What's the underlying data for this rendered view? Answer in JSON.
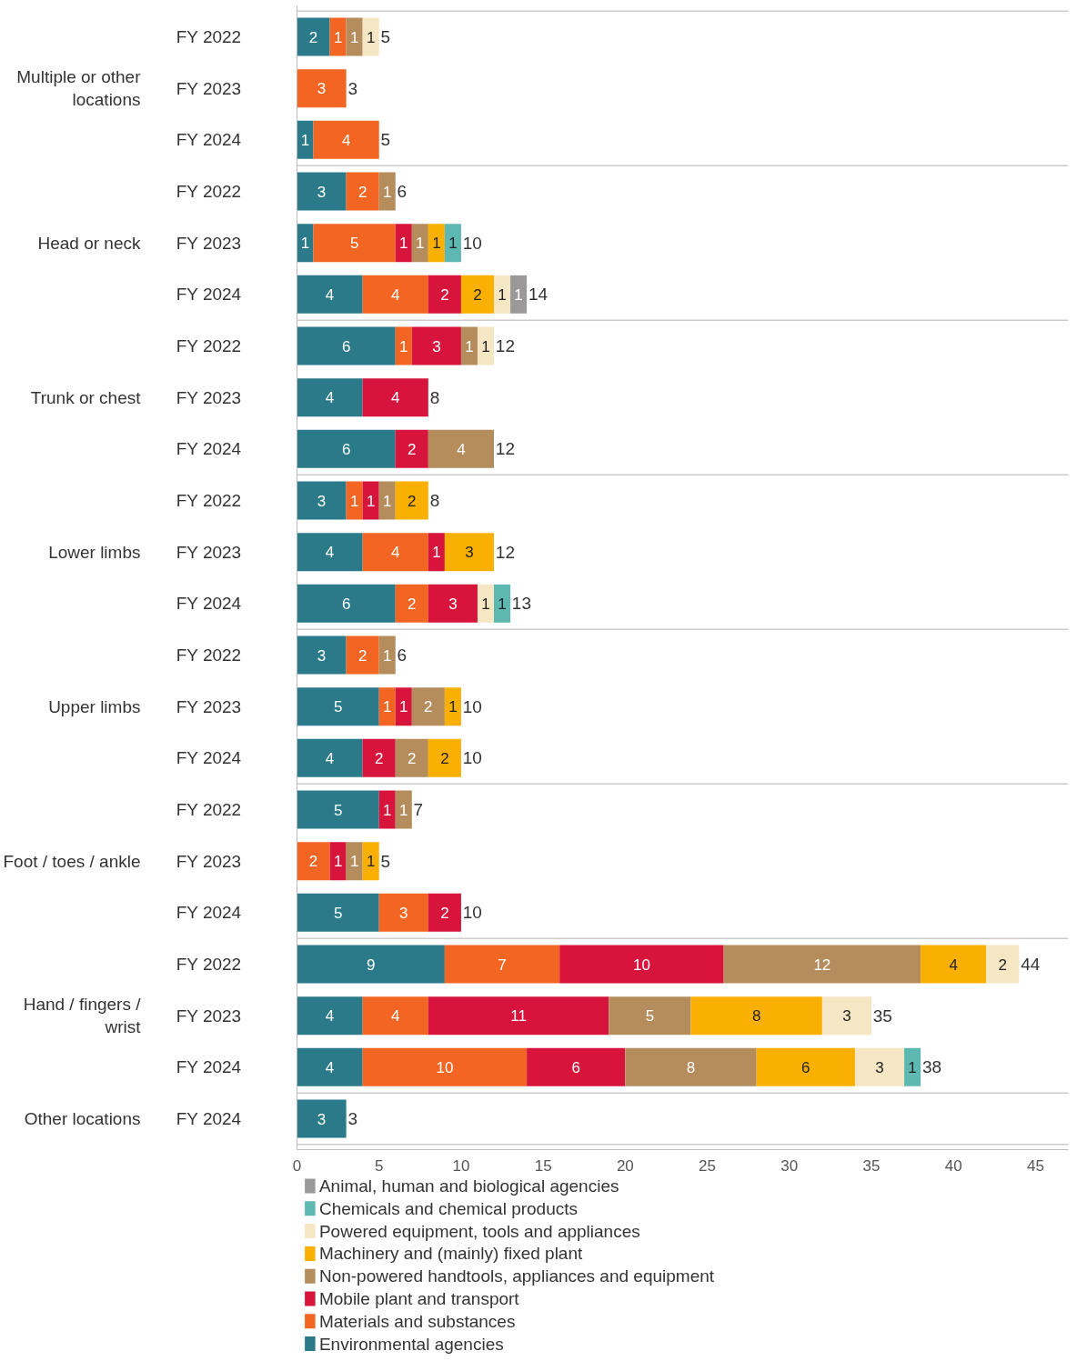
{
  "chart_data": {
    "type": "bar",
    "orientation": "horizontal",
    "stacked": true,
    "data_labels": true,
    "legend": "bottom",
    "categories": [
      "FY 2022",
      "FY 2023",
      "FY 2024",
      "FY 2022",
      "FY 2023",
      "FY 2024",
      "FY 2022",
      "FY 2023",
      "FY 2024",
      "FY 2022",
      "FY 2023",
      "FY 2024",
      "FY 2022",
      "FY 2023",
      "FY 2024",
      "FY 2022",
      "FY 2023",
      "FY 2024",
      "FY 2022",
      "FY 2023",
      "FY 2024",
      "FY 2024"
    ],
    "annotations": [
      "Multiple or other locations",
      "Head or neck",
      "Trunk or chest",
      "Lower limbs",
      "Upper limbs",
      "Foot / toes / ankle",
      "Hand / fingers / wrist",
      "Other locations"
    ],
    "xlim": [
      0,
      47
    ],
    "xticks": [
      0,
      5,
      10,
      15,
      20,
      25,
      30,
      35,
      40,
      45
    ],
    "series": [
      {
        "name": "Environmental agencies",
        "color": "#2b7a8a",
        "values": [
          2,
          null,
          1,
          3,
          1,
          4,
          6,
          4,
          6,
          3,
          4,
          6,
          3,
          5,
          4,
          5,
          null,
          5,
          9,
          4,
          4,
          3
        ]
      },
      {
        "name": "Materials and substances",
        "color": "#f26522",
        "values": [
          1,
          3,
          4,
          2,
          5,
          4,
          1,
          null,
          null,
          1,
          4,
          2,
          2,
          1,
          null,
          null,
          2,
          3,
          7,
          4,
          10,
          null
        ]
      },
      {
        "name": "Mobile plant and transport",
        "color": "#d7143c",
        "values": [
          null,
          null,
          null,
          null,
          1,
          2,
          3,
          4,
          2,
          1,
          1,
          3,
          null,
          1,
          2,
          1,
          1,
          2,
          10,
          11,
          6,
          null
        ]
      },
      {
        "name": "Non-powered handtools, appliances and equipment",
        "color": "#b58c5c",
        "values": [
          1,
          null,
          null,
          1,
          1,
          null,
          1,
          null,
          4,
          1,
          null,
          null,
          1,
          2,
          2,
          1,
          1,
          null,
          12,
          5,
          8,
          null
        ]
      },
      {
        "name": "Machinery and (mainly) fixed plant",
        "color": "#f9b000",
        "values": [
          null,
          null,
          null,
          null,
          1,
          2,
          null,
          null,
          null,
          2,
          3,
          null,
          null,
          1,
          2,
          null,
          1,
          null,
          4,
          8,
          6,
          null
        ]
      },
      {
        "name": "Powered equipment, tools and appliances",
        "color": "#f5e6c4",
        "values": [
          1,
          null,
          null,
          null,
          null,
          1,
          1,
          null,
          null,
          null,
          null,
          1,
          null,
          null,
          null,
          null,
          null,
          null,
          2,
          3,
          3,
          null
        ]
      },
      {
        "name": "Chemicals and chemical products",
        "color": "#5cb8b0",
        "values": [
          null,
          null,
          null,
          null,
          1,
          null,
          null,
          null,
          null,
          null,
          null,
          1,
          null,
          null,
          null,
          null,
          null,
          null,
          null,
          null,
          1,
          null
        ]
      },
      {
        "name": "Animal, human and biological agencies",
        "color": "#999999",
        "values": [
          null,
          null,
          null,
          null,
          null,
          1,
          null,
          null,
          null,
          null,
          null,
          null,
          null,
          null,
          null,
          null,
          null,
          null,
          null,
          null,
          null,
          null
        ]
      }
    ],
    "totals": [
      "5",
      "3",
      "5",
      "6",
      "10",
      "14",
      "12",
      "8",
      "12",
      "8",
      "12",
      "13",
      "6",
      "10",
      "10",
      "7",
      "5",
      "10",
      "44",
      "35",
      "38",
      "3"
    ]
  }
}
